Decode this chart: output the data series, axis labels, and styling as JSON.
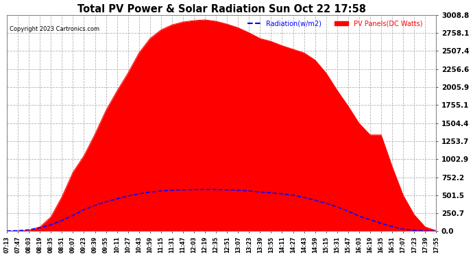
{
  "title": "Total PV Power & Solar Radiation Sun Oct 22 17:58",
  "copyright": "Copyright 2023 Cartronics.com",
  "legend_radiation": "Radiation(w/m2)",
  "legend_pv": "PV Panels(DC Watts)",
  "ymin": 0.0,
  "ymax": 3008.8,
  "yticks": [
    0.0,
    250.7,
    501.5,
    752.2,
    1002.9,
    1253.7,
    1504.4,
    1755.1,
    2005.9,
    2256.6,
    2507.4,
    2758.1,
    3008.8
  ],
  "bg_color": "#ffffff",
  "plot_bg_color": "#ffffff",
  "grid_color": "#aaaaaa",
  "pv_color": "#ff0000",
  "radiation_color": "#0000ff",
  "title_color": "#000000",
  "xtick_labels": [
    "07:13",
    "07:47",
    "08:03",
    "08:19",
    "08:35",
    "08:51",
    "09:07",
    "09:23",
    "09:39",
    "09:55",
    "10:11",
    "10:27",
    "10:43",
    "10:59",
    "11:15",
    "11:31",
    "11:47",
    "12:03",
    "12:19",
    "12:35",
    "12:51",
    "13:07",
    "13:23",
    "13:39",
    "13:55",
    "14:11",
    "14:27",
    "14:43",
    "14:59",
    "15:15",
    "15:31",
    "15:47",
    "16:03",
    "16:19",
    "16:35",
    "16:51",
    "17:07",
    "17:23",
    "17:39",
    "17:55"
  ],
  "pv_values": [
    2,
    4,
    15,
    60,
    200,
    480,
    820,
    1050,
    1350,
    1680,
    1950,
    2200,
    2480,
    2680,
    2800,
    2870,
    2910,
    2930,
    2940,
    2920,
    2880,
    2830,
    2760,
    2680,
    2640,
    2580,
    2530,
    2480,
    2380,
    2200,
    1960,
    1740,
    1500,
    1340,
    1340,
    900,
    500,
    230,
    60,
    8
  ],
  "radiation_values": [
    5,
    8,
    20,
    50,
    90,
    150,
    220,
    300,
    360,
    410,
    450,
    490,
    520,
    545,
    560,
    570,
    575,
    580,
    582,
    580,
    575,
    570,
    560,
    545,
    535,
    520,
    500,
    470,
    430,
    390,
    340,
    280,
    210,
    160,
    110,
    65,
    30,
    12,
    4,
    2
  ],
  "fig_width": 6.9,
  "fig_height": 3.75,
  "dpi": 100
}
